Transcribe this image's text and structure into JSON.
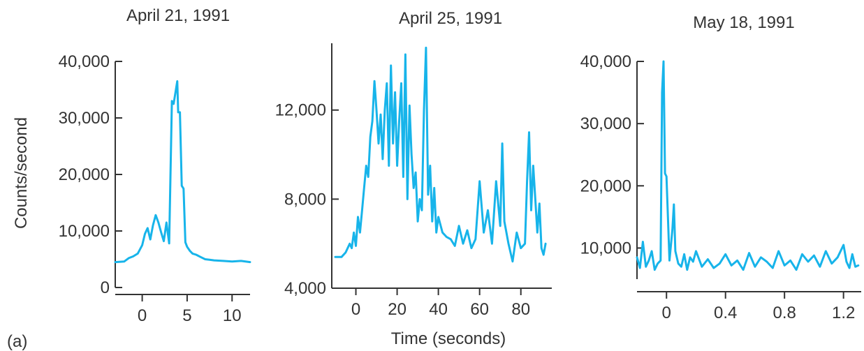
{
  "figure": {
    "panel_label": "(a)",
    "ylabel": "Counts/second",
    "xlabel": "Time (seconds)",
    "line_color": "#17b4ea",
    "axis_color": "#333333"
  },
  "chart_data": [
    {
      "type": "line",
      "title": "April 21, 1991",
      "xlim": [
        -3,
        12
      ],
      "ylim": [
        0,
        40000
      ],
      "xticks": [
        0,
        5,
        10
      ],
      "xtick_labels": [
        "0",
        "5",
        "10"
      ],
      "yticks": [
        0,
        10000,
        20000,
        30000,
        40000
      ],
      "ytick_labels": [
        "0",
        "10,000",
        "20,000",
        "30,000",
        "40,000"
      ],
      "series": [
        {
          "x": [
            -3,
            -2,
            -1.5,
            -1,
            -0.5,
            0,
            0.3,
            0.6,
            0.9,
            1.2,
            1.5,
            1.8,
            2.1,
            2.4,
            2.7,
            3.0,
            3.3,
            3.5,
            3.7,
            3.9,
            4.0,
            4.2,
            4.4,
            4.6,
            4.8,
            5.0,
            5.3,
            5.6,
            6,
            6.5,
            7,
            7.5,
            8,
            9,
            10,
            11,
            12
          ],
          "y": [
            4500,
            4600,
            5200,
            5500,
            6000,
            7500,
            9500,
            10500,
            8500,
            11000,
            12800,
            11500,
            9800,
            8200,
            11500,
            7800,
            33000,
            32500,
            34500,
            36500,
            31000,
            31000,
            18000,
            17500,
            8000,
            7200,
            6500,
            6000,
            5800,
            5400,
            5000,
            4900,
            4800,
            4700,
            4600,
            4700,
            4500
          ]
        }
      ]
    },
    {
      "type": "line",
      "title": "April 25, 1991",
      "xlim": [
        -10,
        95
      ],
      "ylim": [
        4000,
        15000
      ],
      "xticks": [
        0,
        20,
        40,
        60,
        80
      ],
      "xtick_labels": [
        "0",
        "20",
        "40",
        "60",
        "80"
      ],
      "yticks": [
        4000,
        8000,
        12000
      ],
      "ytick_labels": [
        "4,000",
        "8,000",
        "12,000"
      ],
      "series": [
        {
          "x": [
            -10,
            -7,
            -5,
            -3,
            -2,
            -1,
            0,
            1,
            2,
            3,
            4,
            5,
            6,
            7,
            8,
            9,
            10,
            11,
            12,
            13,
            14,
            15,
            16,
            17,
            18,
            19,
            20,
            21,
            22,
            23,
            24,
            25,
            26,
            27,
            28,
            29,
            30,
            31,
            32,
            33,
            34,
            35,
            36,
            37,
            38,
            39,
            40,
            42,
            44,
            46,
            48,
            50,
            52,
            54,
            56,
            58,
            60,
            62,
            64,
            66,
            68,
            70,
            71,
            72,
            74,
            76,
            78,
            80,
            82,
            83,
            84,
            85,
            86,
            87,
            88,
            89,
            90,
            91,
            92
          ],
          "y": [
            5400,
            5400,
            5600,
            6000,
            5800,
            6500,
            5900,
            7200,
            6500,
            7500,
            8500,
            9500,
            9000,
            10800,
            11500,
            13300,
            12000,
            10500,
            11800,
            9800,
            12000,
            13200,
            9500,
            14000,
            10500,
            12800,
            9500,
            11500,
            13200,
            9000,
            14500,
            8000,
            12200,
            10000,
            8500,
            9200,
            7000,
            8000,
            7500,
            12000,
            14800,
            8200,
            9500,
            7000,
            8500,
            6500,
            7200,
            6500,
            6300,
            6200,
            5900,
            6800,
            6000,
            6600,
            5800,
            6200,
            8800,
            6500,
            7500,
            6000,
            8800,
            6800,
            10500,
            7000,
            6000,
            5200,
            6500,
            5800,
            6000,
            8800,
            11000,
            7500,
            9500,
            8000,
            6500,
            7800,
            5800,
            5500,
            6000
          ]
        }
      ]
    },
    {
      "type": "line",
      "title": "May 18, 1991",
      "xlim": [
        -0.2,
        1.32
      ],
      "ylim": [
        5000,
        40000
      ],
      "xticks": [
        0,
        0.4,
        0.8,
        1.2
      ],
      "xtick_labels": [
        "0",
        "0.4",
        "0.8",
        "1.2"
      ],
      "yticks": [
        10000,
        20000,
        30000,
        40000
      ],
      "ytick_labels": [
        "10,000",
        "20,000",
        "30,000",
        "40,000"
      ],
      "series": [
        {
          "x": [
            -0.2,
            -0.18,
            -0.16,
            -0.14,
            -0.12,
            -0.1,
            -0.08,
            -0.06,
            -0.04,
            -0.03,
            -0.02,
            -0.01,
            0.0,
            0.02,
            0.03,
            0.04,
            0.05,
            0.06,
            0.08,
            0.1,
            0.12,
            0.14,
            0.16,
            0.18,
            0.2,
            0.24,
            0.28,
            0.32,
            0.36,
            0.4,
            0.44,
            0.48,
            0.52,
            0.56,
            0.6,
            0.64,
            0.68,
            0.72,
            0.76,
            0.8,
            0.84,
            0.88,
            0.92,
            0.96,
            1.0,
            1.04,
            1.08,
            1.12,
            1.16,
            1.2,
            1.22,
            1.24,
            1.26,
            1.28,
            1.3
          ],
          "y": [
            8500,
            6800,
            11000,
            7000,
            8000,
            9500,
            6500,
            7500,
            8000,
            35000,
            40000,
            22000,
            21500,
            8000,
            10500,
            13000,
            17000,
            9500,
            7500,
            7000,
            9000,
            6500,
            8500,
            7800,
            9500,
            7000,
            8200,
            6800,
            7500,
            9000,
            7200,
            8000,
            6500,
            9200,
            7000,
            8500,
            7800,
            6800,
            9500,
            7200,
            8000,
            6500,
            9000,
            7800,
            8800,
            7000,
            9500,
            7500,
            8500,
            10500,
            7800,
            6800,
            9000,
            7000,
            7200
          ]
        }
      ]
    }
  ]
}
